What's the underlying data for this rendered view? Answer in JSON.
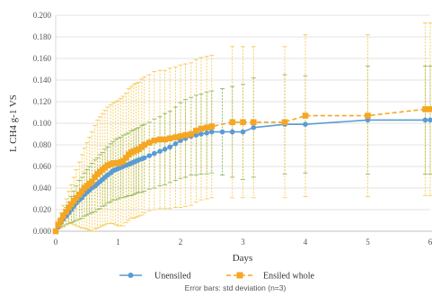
{
  "chart_data": {
    "type": "line",
    "xlabel": "Days",
    "ylabel": "L CH4 g-1 VS",
    "xlim": [
      0,
      6
    ],
    "ylim": [
      0,
      0.2
    ],
    "x_ticks": [
      "0",
      "1",
      "2",
      "3",
      "4",
      "5",
      "6"
    ],
    "y_ticks": [
      "0.000",
      "0.020",
      "0.040",
      "0.060",
      "0.080",
      "0.100",
      "0.120",
      "0.140",
      "0.160",
      "0.180",
      "0.200"
    ],
    "grid": true,
    "legend_position": "bottom",
    "caption": "Error bars: std deviation (n=3)",
    "series": [
      {
        "name": "Unensiled",
        "color": "#5b9bd5",
        "marker": "circle",
        "line_style": "solid",
        "error_bar_color": "#70ad47",
        "x": [
          0,
          0.04,
          0.08,
          0.12,
          0.17,
          0.21,
          0.25,
          0.29,
          0.33,
          0.38,
          0.42,
          0.46,
          0.5,
          0.54,
          0.58,
          0.63,
          0.67,
          0.71,
          0.75,
          0.79,
          0.83,
          0.88,
          0.92,
          0.96,
          1.0,
          1.04,
          1.08,
          1.13,
          1.17,
          1.21,
          1.25,
          1.29,
          1.33,
          1.38,
          1.42,
          1.5,
          1.58,
          1.67,
          1.75,
          1.83,
          1.92,
          2.0,
          2.08,
          2.17,
          2.25,
          2.33,
          2.42,
          2.5,
          2.67,
          2.83,
          3.0,
          3.17,
          3.67,
          4.0,
          5.0,
          5.92,
          6.0
        ],
        "y": [
          0.0,
          0.004,
          0.008,
          0.011,
          0.014,
          0.017,
          0.02,
          0.023,
          0.026,
          0.029,
          0.031,
          0.034,
          0.036,
          0.038,
          0.04,
          0.042,
          0.044,
          0.046,
          0.048,
          0.05,
          0.052,
          0.054,
          0.056,
          0.057,
          0.058,
          0.059,
          0.06,
          0.061,
          0.062,
          0.063,
          0.064,
          0.065,
          0.066,
          0.067,
          0.068,
          0.07,
          0.072,
          0.074,
          0.076,
          0.078,
          0.081,
          0.084,
          0.086,
          0.088,
          0.089,
          0.09,
          0.091,
          0.092,
          0.092,
          0.092,
          0.092,
          0.096,
          0.099,
          0.099,
          0.103,
          0.103,
          0.103
        ],
        "err": [
          0.0,
          0.002,
          0.004,
          0.006,
          0.008,
          0.01,
          0.012,
          0.014,
          0.016,
          0.018,
          0.019,
          0.02,
          0.021,
          0.022,
          0.023,
          0.024,
          0.024,
          0.025,
          0.025,
          0.026,
          0.026,
          0.027,
          0.027,
          0.028,
          0.028,
          0.028,
          0.029,
          0.029,
          0.029,
          0.03,
          0.03,
          0.03,
          0.03,
          0.031,
          0.031,
          0.031,
          0.032,
          0.032,
          0.033,
          0.033,
          0.034,
          0.035,
          0.036,
          0.036,
          0.037,
          0.037,
          0.038,
          0.038,
          0.04,
          0.042,
          0.044,
          0.046,
          0.046,
          0.045,
          0.05,
          0.05,
          0.05
        ]
      },
      {
        "name": "Ensiled whole",
        "color": "#f5a623",
        "marker": "square",
        "line_style": "dashed",
        "error_bar_color": "#f5c542",
        "x": [
          0,
          0.04,
          0.08,
          0.12,
          0.17,
          0.21,
          0.25,
          0.29,
          0.33,
          0.38,
          0.42,
          0.46,
          0.5,
          0.54,
          0.58,
          0.63,
          0.67,
          0.71,
          0.75,
          0.79,
          0.83,
          0.88,
          0.92,
          0.96,
          1.0,
          1.04,
          1.08,
          1.13,
          1.17,
          1.21,
          1.25,
          1.29,
          1.33,
          1.38,
          1.42,
          1.5,
          1.58,
          1.67,
          1.75,
          1.83,
          1.92,
          2.0,
          2.08,
          2.17,
          2.25,
          2.33,
          2.42,
          2.5,
          2.83,
          3.0,
          3.17,
          3.67,
          4.0,
          5.0,
          5.92,
          6.0
        ],
        "y": [
          0.0,
          0.006,
          0.01,
          0.014,
          0.018,
          0.022,
          0.025,
          0.028,
          0.031,
          0.034,
          0.037,
          0.04,
          0.042,
          0.044,
          0.046,
          0.05,
          0.053,
          0.055,
          0.057,
          0.059,
          0.061,
          0.062,
          0.063,
          0.063,
          0.063,
          0.064,
          0.065,
          0.068,
          0.071,
          0.073,
          0.074,
          0.075,
          0.076,
          0.078,
          0.08,
          0.082,
          0.084,
          0.085,
          0.085,
          0.086,
          0.087,
          0.088,
          0.089,
          0.09,
          0.093,
          0.095,
          0.096,
          0.097,
          0.101,
          0.101,
          0.101,
          0.101,
          0.107,
          0.107,
          0.113,
          0.113
        ],
        "err": [
          0.0,
          0.004,
          0.007,
          0.01,
          0.012,
          0.015,
          0.018,
          0.022,
          0.026,
          0.03,
          0.034,
          0.037,
          0.04,
          0.043,
          0.046,
          0.048,
          0.05,
          0.051,
          0.052,
          0.053,
          0.054,
          0.055,
          0.056,
          0.057,
          0.058,
          0.059,
          0.06,
          0.06,
          0.061,
          0.061,
          0.062,
          0.062,
          0.062,
          0.063,
          0.063,
          0.063,
          0.064,
          0.064,
          0.064,
          0.065,
          0.065,
          0.066,
          0.066,
          0.066,
          0.066,
          0.066,
          0.066,
          0.066,
          0.07,
          0.07,
          0.07,
          0.07,
          0.075,
          0.075,
          0.08,
          0.08
        ]
      }
    ]
  }
}
